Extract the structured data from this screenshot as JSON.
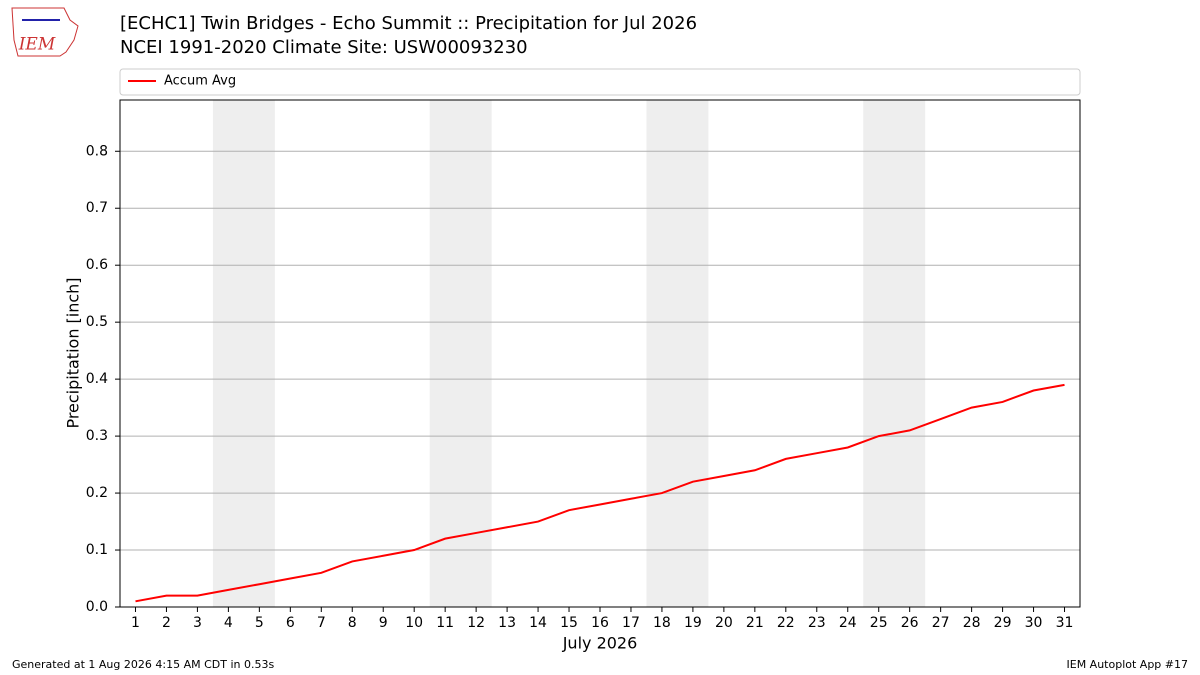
{
  "logo_text": "IEM",
  "chart_data": {
    "type": "line",
    "title": "[ECHC1] Twin Bridges - Echo Summit :: Precipitation for Jul 2026",
    "subtitle": "NCEI 1991-2020 Climate Site: USW00093230",
    "x_label": "July 2026",
    "y_label": "Precipitation [inch]",
    "x": [
      1,
      2,
      3,
      4,
      5,
      6,
      7,
      8,
      9,
      10,
      11,
      12,
      13,
      14,
      15,
      16,
      17,
      18,
      19,
      20,
      21,
      22,
      23,
      24,
      25,
      26,
      27,
      28,
      29,
      30,
      31
    ],
    "series": [
      {
        "name": "Accum Avg",
        "color": "#ff0000",
        "values": [
          0.01,
          0.02,
          0.02,
          0.03,
          0.04,
          0.05,
          0.06,
          0.08,
          0.09,
          0.1,
          0.12,
          0.13,
          0.14,
          0.15,
          0.17,
          0.18,
          0.19,
          0.2,
          0.22,
          0.23,
          0.24,
          0.26,
          0.27,
          0.28,
          0.3,
          0.31,
          0.33,
          0.35,
          0.36,
          0.38,
          0.39
        ]
      }
    ],
    "shaded_x_ranges": [
      [
        3.5,
        5.5
      ],
      [
        10.5,
        12.5
      ],
      [
        17.5,
        19.5
      ],
      [
        24.5,
        26.5
      ]
    ],
    "shade_color": "#eeeeee",
    "xlim": [
      0.5,
      31.5
    ],
    "ylim": [
      0,
      0.89
    ],
    "xticks": [
      1,
      2,
      3,
      4,
      5,
      6,
      7,
      8,
      9,
      10,
      11,
      12,
      13,
      14,
      15,
      16,
      17,
      18,
      19,
      20,
      21,
      22,
      23,
      24,
      25,
      26,
      27,
      28,
      29,
      30,
      31
    ],
    "yticks": [
      {
        "value": 0,
        "label": "0.0"
      },
      0.1,
      0.2,
      0.3,
      0.4,
      0.5,
      0.6,
      0.7,
      0.8
    ],
    "grid": true,
    "legend": "top"
  },
  "footer": {
    "left": "Generated at 1 Aug 2026 4:15 AM CDT in 0.53s",
    "right": "IEM Autoplot App #17"
  }
}
